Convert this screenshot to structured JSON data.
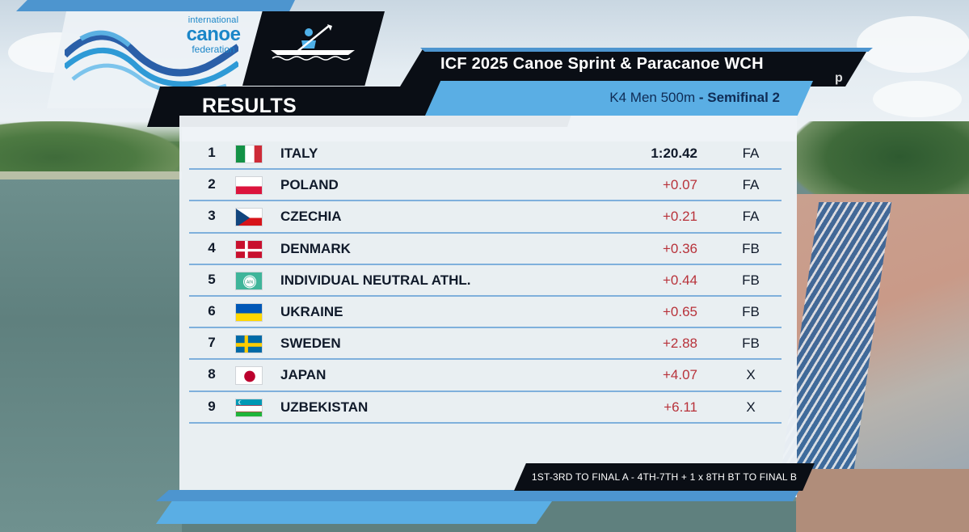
{
  "logo": {
    "line1": "international",
    "line2": "canoe",
    "line3": "federation"
  },
  "discipline_icon": "kayak-icon",
  "header": {
    "results_title": "RESULTS",
    "event_title": "ICF 2025 Canoe Sprint & Paracanoe WCH",
    "race_name": "K4 Men 500m",
    "race_phase": "- Semifinal 2",
    "brand_edge": "p"
  },
  "results": [
    {
      "rank": "1",
      "flag": "flag-italy-icon",
      "country": "ITALY",
      "time": "1:20.42",
      "qual": "FA"
    },
    {
      "rank": "2",
      "flag": "flag-poland-icon",
      "country": "POLAND",
      "time": "+0.07",
      "qual": "FA"
    },
    {
      "rank": "3",
      "flag": "flag-czechia-icon",
      "country": "CZECHIA",
      "time": "+0.21",
      "qual": "FA"
    },
    {
      "rank": "4",
      "flag": "flag-denmark-icon",
      "country": "DENMARK",
      "time": "+0.36",
      "qual": "FB"
    },
    {
      "rank": "5",
      "flag": "flag-ain-icon",
      "country": "INDIVIDUAL NEUTRAL ATHL.",
      "time": "+0.44",
      "qual": "FB",
      "flag_text": "AIN"
    },
    {
      "rank": "6",
      "flag": "flag-ukraine-icon",
      "country": "UKRAINE",
      "time": "+0.65",
      "qual": "FB"
    },
    {
      "rank": "7",
      "flag": "flag-sweden-icon",
      "country": "SWEDEN",
      "time": "+2.88",
      "qual": "FB"
    },
    {
      "rank": "8",
      "flag": "flag-japan-icon",
      "country": "JAPAN",
      "time": "+4.07",
      "qual": "X"
    },
    {
      "rank": "9",
      "flag": "flag-uzbekistan-icon",
      "country": "UZBEKISTAN",
      "time": "+6.11",
      "qual": "X"
    }
  ],
  "footer": {
    "qualification_note": "1ST-3RD TO FINAL A - 4TH-7TH + 1 x 8TH BT TO FINAL B"
  },
  "colors": {
    "accent_blue": "#4d95cf",
    "light_blue": "#5aaee4",
    "dark": "#0a0e15",
    "gap_red": "#b8323a",
    "logo_blue": "#1b86c8"
  }
}
